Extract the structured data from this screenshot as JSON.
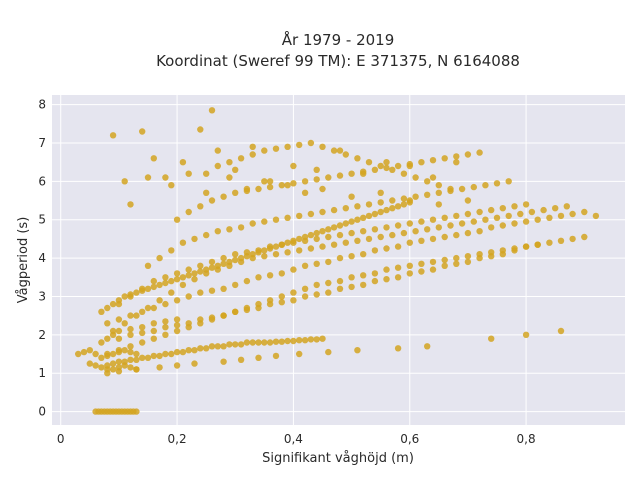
{
  "chart_data": {
    "type": "scatter",
    "title": "År 1979 - 2019",
    "subtitle": "Koordinat (Sweref 99 TM): E 371375, N 6164088",
    "xlabel": "Signifikant våghöjd (m)",
    "ylabel": "Vågperiod (s)",
    "xlim": [
      -0.015,
      0.97
    ],
    "ylim": [
      -0.35,
      8.25
    ],
    "x_ticks": [
      0,
      0.2,
      0.4,
      0.6,
      0.8
    ],
    "x_tick_labels": [
      "0",
      "0,2",
      "0,4",
      "0,6",
      "0,8"
    ],
    "y_ticks": [
      0,
      1,
      2,
      3,
      4,
      5,
      6,
      7,
      8
    ],
    "y_tick_labels": [
      "0",
      "1",
      "2",
      "3",
      "4",
      "5",
      "6",
      "7",
      "8"
    ],
    "grid": true,
    "legend": "none",
    "colors": {
      "marker": "#d4a521",
      "plot_bg": "#e5e5ef",
      "grid": "#ffffff"
    },
    "series": [
      {
        "x": [
          0.03,
          0.04,
          0.05,
          0.06,
          0.07,
          0.08,
          0.09,
          0.1,
          0.11,
          0.12,
          0.13,
          0.05,
          0.06,
          0.07,
          0.08,
          0.09,
          0.1,
          0.11,
          0.12,
          0.13,
          0.07,
          0.08,
          0.09,
          0.1,
          0.12,
          0.14,
          0.16,
          0.18,
          0.2,
          0.08,
          0.1,
          0.12,
          0.14,
          0.16,
          0.18,
          0.2,
          0.22,
          0.24,
          0.26,
          0.28,
          0.3,
          0.32,
          0.34,
          0.36,
          0.38,
          0.4,
          0.42,
          0.44,
          0.46,
          0.48,
          0.5,
          0.52,
          0.54,
          0.56,
          0.58,
          0.6,
          0.62,
          0.64,
          0.66,
          0.68,
          0.7,
          0.72,
          0.74,
          0.76,
          0.78,
          0.8,
          0.82,
          0.84,
          0.86,
          0.88,
          0.9,
          0.92,
          0.1,
          0.12,
          0.14,
          0.16,
          0.18,
          0.2,
          0.22,
          0.24,
          0.26,
          0.28,
          0.3,
          0.32,
          0.34,
          0.36,
          0.38,
          0.4,
          0.42,
          0.44,
          0.46,
          0.48,
          0.5,
          0.52,
          0.54,
          0.56,
          0.58,
          0.6,
          0.62,
          0.64,
          0.66,
          0.68,
          0.7,
          0.72,
          0.74,
          0.76,
          0.78,
          0.8,
          0.82,
          0.1,
          0.12,
          0.14,
          0.16,
          0.18,
          0.2,
          0.22,
          0.24,
          0.26,
          0.28,
          0.3,
          0.32,
          0.34,
          0.36,
          0.38,
          0.4,
          0.42,
          0.44,
          0.46,
          0.48,
          0.5,
          0.52,
          0.54,
          0.56,
          0.58,
          0.6,
          0.62,
          0.64,
          0.66,
          0.68,
          0.7,
          0.72,
          0.74,
          0.76,
          0.78,
          0.8,
          0.15,
          0.17,
          0.19,
          0.21,
          0.23,
          0.25,
          0.27,
          0.29,
          0.31,
          0.33,
          0.35,
          0.37,
          0.39,
          0.41,
          0.43,
          0.45,
          0.47,
          0.49,
          0.51,
          0.53,
          0.55,
          0.57,
          0.59,
          0.61,
          0.63,
          0.65,
          0.67,
          0.69,
          0.71,
          0.73,
          0.75,
          0.77,
          0.2,
          0.22,
          0.24,
          0.26,
          0.28,
          0.3,
          0.32,
          0.34,
          0.36,
          0.38,
          0.4,
          0.42,
          0.44,
          0.46,
          0.48,
          0.5,
          0.52,
          0.54,
          0.56,
          0.58,
          0.6,
          0.62,
          0.64,
          0.66,
          0.68,
          0.7,
          0.72,
          0.25,
          0.27,
          0.29,
          0.31,
          0.33,
          0.35,
          0.37,
          0.39,
          0.41,
          0.43,
          0.45,
          0.47,
          0.49,
          0.51,
          0.53,
          0.55,
          0.57,
          0.59,
          0.61,
          0.63,
          0.65,
          0.67,
          0.08,
          0.1,
          0.12,
          0.14,
          0.16,
          0.18,
          0.2,
          0.22,
          0.24,
          0.26,
          0.28,
          0.3,
          0.32,
          0.34,
          0.36,
          0.38,
          0.4,
          0.42,
          0.44,
          0.46,
          0.48,
          0.5,
          0.52,
          0.54,
          0.56,
          0.58,
          0.6,
          0.62,
          0.64,
          0.66,
          0.68,
          0.7,
          0.72,
          0.74,
          0.76,
          0.78,
          0.8,
          0.82,
          0.84,
          0.86,
          0.88,
          0.9,
          0.09,
          0.11,
          0.13,
          0.15,
          0.17,
          0.19,
          0.21,
          0.23,
          0.25,
          0.27,
          0.29,
          0.31,
          0.33,
          0.35,
          0.37,
          0.39,
          0.41,
          0.43,
          0.45,
          0.47,
          0.49,
          0.51,
          0.53,
          0.55,
          0.57,
          0.59,
          0.61,
          0.63,
          0.65,
          0.67,
          0.69,
          0.71,
          0.73,
          0.75,
          0.77,
          0.79,
          0.81,
          0.83,
          0.85,
          0.87,
          0.06,
          0.065,
          0.07,
          0.075,
          0.08,
          0.085,
          0.09,
          0.095,
          0.1,
          0.105,
          0.11,
          0.115,
          0.12,
          0.125,
          0.13,
          0.08,
          0.09,
          0.1,
          0.11,
          0.12,
          0.13,
          0.14,
          0.15,
          0.16,
          0.17,
          0.18,
          0.19,
          0.2,
          0.21,
          0.22,
          0.23,
          0.24,
          0.25,
          0.26,
          0.27,
          0.28,
          0.29,
          0.3,
          0.31,
          0.32,
          0.33,
          0.34,
          0.35,
          0.36,
          0.37,
          0.38,
          0.39,
          0.4,
          0.41,
          0.42,
          0.43,
          0.44,
          0.45,
          0.07,
          0.08,
          0.09,
          0.1,
          0.11,
          0.12,
          0.13,
          0.14,
          0.15,
          0.16,
          0.17,
          0.18,
          0.19,
          0.2,
          0.21,
          0.22,
          0.23,
          0.24,
          0.25,
          0.26,
          0.27,
          0.28,
          0.29,
          0.3,
          0.31,
          0.32,
          0.33,
          0.34,
          0.35,
          0.36,
          0.37,
          0.38,
          0.39,
          0.4,
          0.41,
          0.42,
          0.43,
          0.44,
          0.45,
          0.46,
          0.47,
          0.48,
          0.49,
          0.5,
          0.51,
          0.52,
          0.53,
          0.54,
          0.55,
          0.56,
          0.57,
          0.58,
          0.59,
          0.6,
          0.26,
          0.09,
          0.11,
          0.14,
          0.16,
          0.18,
          0.21,
          0.24,
          0.27,
          0.3,
          0.33,
          0.36,
          0.4,
          0.44,
          0.48,
          0.52,
          0.56,
          0.6,
          0.64,
          0.68,
          0.12,
          0.15,
          0.19,
          0.22,
          0.25,
          0.29,
          0.32,
          0.35,
          0.39,
          0.42,
          0.45,
          0.5,
          0.55,
          0.6,
          0.65,
          0.7,
          0.08,
          0.1,
          0.13,
          0.17,
          0.2,
          0.23,
          0.28,
          0.31,
          0.34,
          0.37,
          0.41,
          0.46,
          0.51,
          0.58,
          0.63,
          0.74,
          0.8,
          0.86
        ],
        "y": [
          1.5,
          1.55,
          1.6,
          1.5,
          1.4,
          1.45,
          1.5,
          1.55,
          1.6,
          1.55,
          1.5,
          1.25,
          1.2,
          1.15,
          1.1,
          1.1,
          1.15,
          1.2,
          1.15,
          1.1,
          1.8,
          1.9,
          2.0,
          2.1,
          2.15,
          2.2,
          2.3,
          2.35,
          2.4,
          2.3,
          2.4,
          2.5,
          2.6,
          2.7,
          2.8,
          2.9,
          3.0,
          3.1,
          3.15,
          3.2,
          3.3,
          3.4,
          3.5,
          3.55,
          3.6,
          3.7,
          3.8,
          3.85,
          3.9,
          4.0,
          4.05,
          4.1,
          4.2,
          4.25,
          4.3,
          4.4,
          4.45,
          4.5,
          4.55,
          4.6,
          4.65,
          4.7,
          4.8,
          4.85,
          4.9,
          4.95,
          5.0,
          5.05,
          5.1,
          5.15,
          5.2,
          5.1,
          1.9,
          2.0,
          2.05,
          2.1,
          2.2,
          2.25,
          2.3,
          2.4,
          2.45,
          2.5,
          2.6,
          2.65,
          2.7,
          2.8,
          2.85,
          2.9,
          3.0,
          3.05,
          3.1,
          3.2,
          3.25,
          3.3,
          3.4,
          3.45,
          3.5,
          3.6,
          3.65,
          3.7,
          3.8,
          3.85,
          3.9,
          4.0,
          4.05,
          4.1,
          4.2,
          4.3,
          4.35,
          2.8,
          3.0,
          3.2,
          3.4,
          3.5,
          3.6,
          3.7,
          3.8,
          3.9,
          4.0,
          4.1,
          4.15,
          4.2,
          4.3,
          4.35,
          4.4,
          4.45,
          4.5,
          4.55,
          4.6,
          4.65,
          4.7,
          4.75,
          4.8,
          4.85,
          4.9,
          4.95,
          5.0,
          5.05,
          5.1,
          5.15,
          5.2,
          5.25,
          5.3,
          5.35,
          5.4,
          3.8,
          4.0,
          4.2,
          4.4,
          4.5,
          4.6,
          4.7,
          4.75,
          4.8,
          4.9,
          4.95,
          5.0,
          5.05,
          5.1,
          5.15,
          5.2,
          5.25,
          5.3,
          5.35,
          5.4,
          5.45,
          5.5,
          5.55,
          5.6,
          5.65,
          5.7,
          5.75,
          5.8,
          5.85,
          5.9,
          5.95,
          6.0,
          5.0,
          5.2,
          5.35,
          5.5,
          5.6,
          5.7,
          5.75,
          5.8,
          5.85,
          5.9,
          5.95,
          6.0,
          6.05,
          6.1,
          6.15,
          6.2,
          6.25,
          6.3,
          6.35,
          6.4,
          6.45,
          6.5,
          6.55,
          6.6,
          6.65,
          6.7,
          6.75,
          6.2,
          6.4,
          6.5,
          6.6,
          6.7,
          6.8,
          6.85,
          6.9,
          6.95,
          7.0,
          6.9,
          6.8,
          6.7,
          6.6,
          6.5,
          6.4,
          6.3,
          6.2,
          6.1,
          6.0,
          5.9,
          5.8,
          1.5,
          1.6,
          1.7,
          1.8,
          1.9,
          2.0,
          2.1,
          2.2,
          2.3,
          2.4,
          2.5,
          2.6,
          2.7,
          2.8,
          2.9,
          3.0,
          3.1,
          3.2,
          3.3,
          3.35,
          3.4,
          3.5,
          3.55,
          3.6,
          3.7,
          3.75,
          3.8,
          3.85,
          3.9,
          3.95,
          4.0,
          4.05,
          4.1,
          4.15,
          4.2,
          4.25,
          4.3,
          4.35,
          4.4,
          4.45,
          4.5,
          4.55,
          2.1,
          2.3,
          2.5,
          2.7,
          2.9,
          3.1,
          3.3,
          3.45,
          3.6,
          3.7,
          3.8,
          3.9,
          4.0,
          4.05,
          4.1,
          4.15,
          4.2,
          4.25,
          4.3,
          4.35,
          4.4,
          4.45,
          4.5,
          4.55,
          4.6,
          4.65,
          4.7,
          4.75,
          4.8,
          4.85,
          4.9,
          4.95,
          5.0,
          5.05,
          5.1,
          5.15,
          5.2,
          5.25,
          5.3,
          5.35,
          0,
          0,
          0,
          0,
          0,
          0,
          0,
          0,
          0,
          0,
          0,
          0,
          0,
          0,
          0,
          1.2,
          1.25,
          1.3,
          1.3,
          1.35,
          1.35,
          1.4,
          1.4,
          1.45,
          1.45,
          1.5,
          1.5,
          1.55,
          1.55,
          1.6,
          1.6,
          1.65,
          1.65,
          1.7,
          1.7,
          1.7,
          1.75,
          1.75,
          1.75,
          1.8,
          1.8,
          1.8,
          1.8,
          1.8,
          1.82,
          1.82,
          1.84,
          1.84,
          1.86,
          1.86,
          1.88,
          1.88,
          1.9,
          2.6,
          2.7,
          2.8,
          2.9,
          3.0,
          3.05,
          3.1,
          3.15,
          3.2,
          3.25,
          3.3,
          3.35,
          3.4,
          3.45,
          3.5,
          3.55,
          3.6,
          3.65,
          3.7,
          3.75,
          3.8,
          3.85,
          3.9,
          3.95,
          4.0,
          4.05,
          4.1,
          4.15,
          4.2,
          4.25,
          4.3,
          4.35,
          4.4,
          4.45,
          4.5,
          4.55,
          4.6,
          4.65,
          4.7,
          4.75,
          4.8,
          4.85,
          4.9,
          4.95,
          5.0,
          5.05,
          5.1,
          5.15,
          5.2,
          5.25,
          5.3,
          5.35,
          5.4,
          5.45,
          7.85,
          7.2,
          6.0,
          7.3,
          6.6,
          6.1,
          6.5,
          7.35,
          6.8,
          6.3,
          6.9,
          6.0,
          6.4,
          6.3,
          6.8,
          6.2,
          6.5,
          6.4,
          6.1,
          6.5,
          5.4,
          6.1,
          5.9,
          6.2,
          5.7,
          6.1,
          5.8,
          6.0,
          5.9,
          5.7,
          5.8,
          5.6,
          5.7,
          5.5,
          5.4,
          5.5,
          1.0,
          1.05,
          1.1,
          1.15,
          1.2,
          1.25,
          1.3,
          1.35,
          1.4,
          1.45,
          1.5,
          1.55,
          1.6,
          1.65,
          1.7,
          1.9,
          2.0,
          2.1
        ]
      }
    ]
  }
}
